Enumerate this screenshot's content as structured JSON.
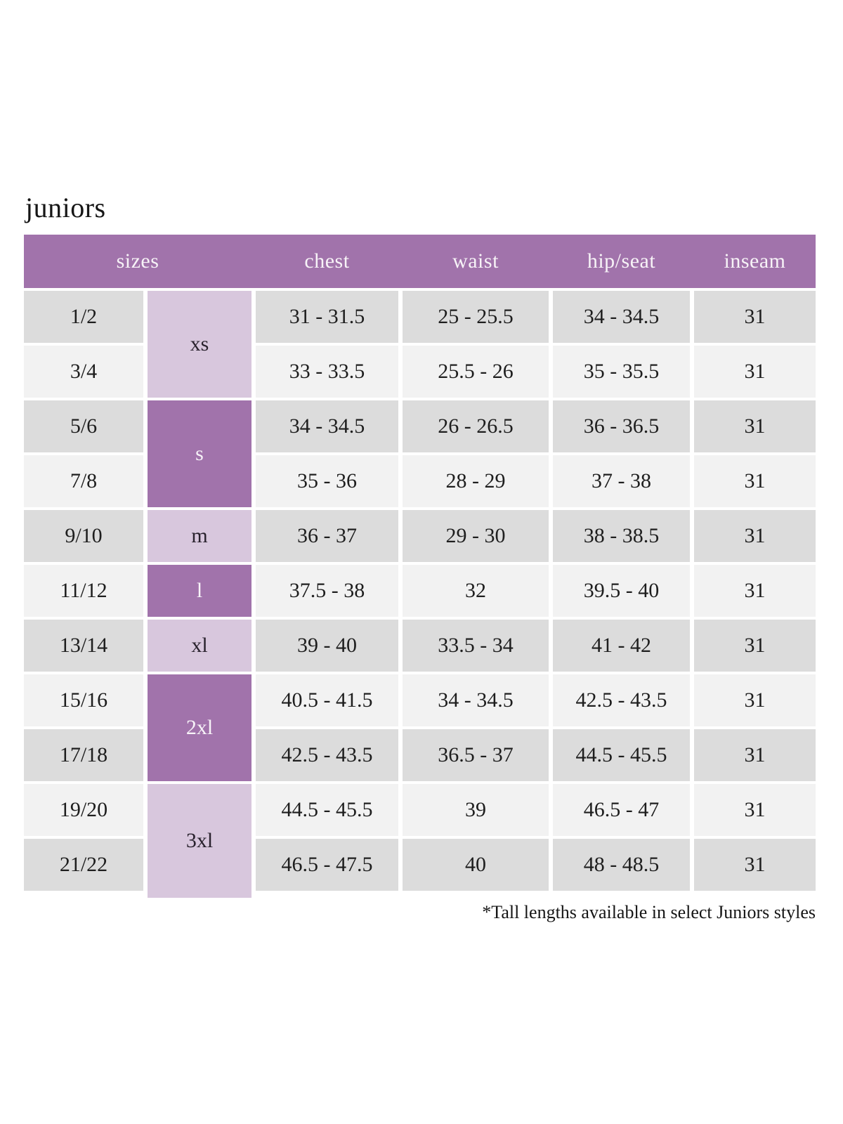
{
  "title": "juniors",
  "table": {
    "headers": {
      "sizes": "sizes",
      "chest": "chest",
      "waist": "waist",
      "hip_seat": "hip/seat",
      "inseam": "inseam"
    },
    "size_groups": [
      {
        "label": "xs",
        "covers_sizes": [
          "1/2",
          "3/4"
        ]
      },
      {
        "label": "s",
        "covers_sizes": [
          "5/6",
          "7/8"
        ]
      },
      {
        "label": "m",
        "covers_sizes": [
          "9/10"
        ]
      },
      {
        "label": "l",
        "covers_sizes": [
          "11/12"
        ]
      },
      {
        "label": "xl",
        "covers_sizes": [
          "13/14"
        ]
      },
      {
        "label": "2xl",
        "covers_sizes": [
          "15/16",
          "17/18"
        ]
      },
      {
        "label": "3xl",
        "covers_sizes": [
          "19/20",
          "21/22"
        ]
      }
    ],
    "rows": [
      {
        "size": "1/2",
        "chest": "31 - 31.5",
        "waist": "25 - 25.5",
        "hip_seat": "34 - 34.5",
        "inseam": "31"
      },
      {
        "size": "3/4",
        "chest": "33 - 33.5",
        "waist": "25.5 - 26",
        "hip_seat": "35 - 35.5",
        "inseam": "31"
      },
      {
        "size": "5/6",
        "chest": "34 - 34.5",
        "waist": "26 - 26.5",
        "hip_seat": "36 - 36.5",
        "inseam": "31"
      },
      {
        "size": "7/8",
        "chest": "35 - 36",
        "waist": "28 - 29",
        "hip_seat": "37 - 38",
        "inseam": "31"
      },
      {
        "size": "9/10",
        "chest": "36 - 37",
        "waist": "29 - 30",
        "hip_seat": "38 - 38.5",
        "inseam": "31"
      },
      {
        "size": "11/12",
        "chest": "37.5 - 38",
        "waist": "32",
        "hip_seat": "39.5 - 40",
        "inseam": "31"
      },
      {
        "size": "13/14",
        "chest": "39 - 40",
        "waist": "33.5 - 34",
        "hip_seat": "41 - 42",
        "inseam": "31"
      },
      {
        "size": "15/16",
        "chest": "40.5 - 41.5",
        "waist": "34 - 34.5",
        "hip_seat": "42.5 - 43.5",
        "inseam": "31"
      },
      {
        "size": "17/18",
        "chest": "42.5 - 43.5",
        "waist": "36.5 - 37",
        "hip_seat": "44.5 - 45.5",
        "inseam": "31"
      },
      {
        "size": "19/20",
        "chest": "44.5 - 45.5",
        "waist": "39",
        "hip_seat": "46.5 - 47",
        "inseam": "31"
      },
      {
        "size": "21/22",
        "chest": "46.5 - 47.5",
        "waist": "40",
        "hip_seat": "48 - 48.5",
        "inseam": "31"
      }
    ]
  },
  "footnote": "*Tall lengths available in select Juniors styles",
  "colors": {
    "header_purple": "#a173ab",
    "group_light_purple": "#d8c7dd",
    "row_gray": "#dcdcdc",
    "row_light": "#f2f2f2",
    "header_text": "#f7f3f7",
    "body_text": "#1e1e1e"
  }
}
